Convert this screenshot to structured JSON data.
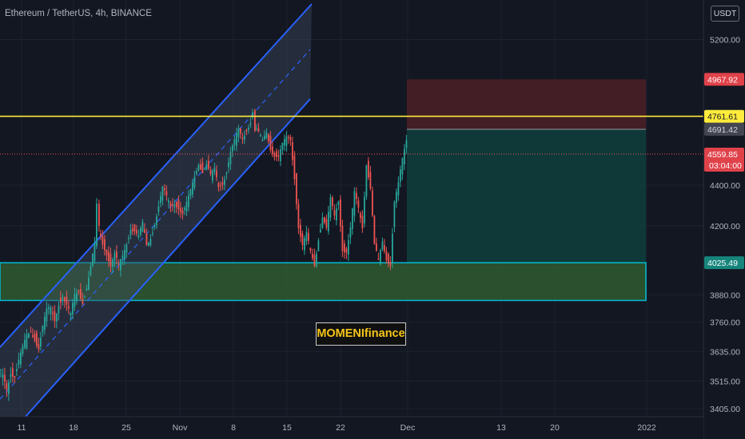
{
  "header": {
    "symbol_title": "Ethereum / TetherUS, 4h, BINANCE",
    "currency": "USDT"
  },
  "watermark": "MOMENIfinance",
  "colors": {
    "background": "#131722",
    "grid": "#1e222d",
    "axis_text": "#b2b5be",
    "candle_up": "#26a69a",
    "candle_down": "#ef5350",
    "channel_line": "#2962ff",
    "resistance": "#ffeb3b",
    "support_border": "#00bcd4",
    "support_fill": "#2f5a2f",
    "stop_zone": "#4a1f26",
    "target_zone": "#0f3d3c"
  },
  "chart_data": {
    "type": "candlestick",
    "title": "Ethereum / TetherUS, 4h, BINANCE",
    "ylabel": "USDT",
    "y_scale": "log",
    "ylim": [
      3395,
      5450
    ],
    "x_ticks": [
      "11",
      "18",
      "25",
      "Nov",
      "8",
      "15",
      "22",
      "Dec",
      "13",
      "20",
      "2022"
    ],
    "y_ticks": [
      "5200.00",
      "4400.00",
      "4200.00",
      "3880.00",
      "3760.00",
      "3635.00",
      "3515.00",
      "3405.00"
    ],
    "price_labels": {
      "stop": "4967.92",
      "resistance": "4761.61",
      "entry": "4691.42",
      "current_price": "4559.85",
      "countdown": "03:04:00",
      "target": "4025.49"
    },
    "levels": {
      "resistance": 4761.61,
      "support_top": 4025.49,
      "support_bottom": 3855
    },
    "series": [
      {
        "name": "",
        "points": [
          [
            0,
            3560
          ],
          [
            5,
            3525
          ],
          [
            10,
            3480
          ],
          [
            15,
            3560
          ],
          [
            20,
            3545
          ],
          [
            25,
            3600
          ],
          [
            30,
            3640
          ],
          [
            35,
            3690
          ],
          [
            40,
            3720
          ],
          [
            45,
            3700
          ],
          [
            50,
            3660
          ],
          [
            55,
            3740
          ],
          [
            60,
            3800
          ],
          [
            65,
            3810
          ],
          [
            70,
            3770
          ],
          [
            75,
            3850
          ],
          [
            80,
            3880
          ],
          [
            85,
            3830
          ],
          [
            90,
            3780
          ],
          [
            95,
            3870
          ],
          [
            100,
            3900
          ],
          [
            105,
            3860
          ],
          [
            110,
            3920
          ],
          [
            115,
            4000
          ],
          [
            120,
            4100
          ],
          [
            123,
            4290
          ],
          [
            125,
            4180
          ],
          [
            130,
            4120
          ],
          [
            135,
            4080
          ],
          [
            140,
            4020
          ],
          [
            145,
            4060
          ],
          [
            150,
            4000
          ],
          [
            155,
            4050
          ],
          [
            160,
            4120
          ],
          [
            165,
            4200
          ],
          [
            170,
            4180
          ],
          [
            175,
            4140
          ],
          [
            180,
            4200
          ],
          [
            185,
            4100
          ],
          [
            190,
            4150
          ],
          [
            195,
            4220
          ],
          [
            200,
            4300
          ],
          [
            205,
            4380
          ],
          [
            210,
            4330
          ],
          [
            215,
            4290
          ],
          [
            220,
            4320
          ],
          [
            225,
            4300
          ],
          [
            230,
            4260
          ],
          [
            235,
            4300
          ],
          [
            240,
            4360
          ],
          [
            245,
            4440
          ],
          [
            250,
            4520
          ],
          [
            255,
            4480
          ],
          [
            260,
            4510
          ],
          [
            265,
            4440
          ],
          [
            270,
            4470
          ],
          [
            275,
            4390
          ],
          [
            280,
            4420
          ],
          [
            285,
            4480
          ],
          [
            290,
            4570
          ],
          [
            295,
            4620
          ],
          [
            300,
            4680
          ],
          [
            305,
            4640
          ],
          [
            310,
            4700
          ],
          [
            315,
            4740
          ],
          [
            318,
            4790
          ],
          [
            320,
            4700
          ],
          [
            325,
            4660
          ],
          [
            330,
            4620
          ],
          [
            335,
            4680
          ],
          [
            340,
            4600
          ],
          [
            345,
            4560
          ],
          [
            350,
            4540
          ],
          [
            355,
            4600
          ],
          [
            360,
            4640
          ],
          [
            365,
            4640
          ],
          [
            370,
            4450
          ],
          [
            375,
            4200
          ],
          [
            380,
            4100
          ],
          [
            385,
            4150
          ],
          [
            390,
            4070
          ],
          [
            395,
            4020
          ],
          [
            400,
            4150
          ],
          [
            405,
            4250
          ],
          [
            410,
            4180
          ],
          [
            415,
            4320
          ],
          [
            420,
            4240
          ],
          [
            425,
            4330
          ],
          [
            430,
            4100
          ],
          [
            435,
            4080
          ],
          [
            440,
            4180
          ],
          [
            445,
            4350
          ],
          [
            450,
            4280
          ],
          [
            455,
            4200
          ],
          [
            460,
            4520
          ],
          [
            465,
            4390
          ],
          [
            470,
            4100
          ],
          [
            475,
            4020
          ],
          [
            480,
            4120
          ],
          [
            485,
            4050
          ],
          [
            490,
            4030
          ],
          [
            495,
            4320
          ],
          [
            500,
            4400
          ],
          [
            505,
            4520
          ],
          [
            510,
            4630
          ]
        ]
      }
    ]
  }
}
